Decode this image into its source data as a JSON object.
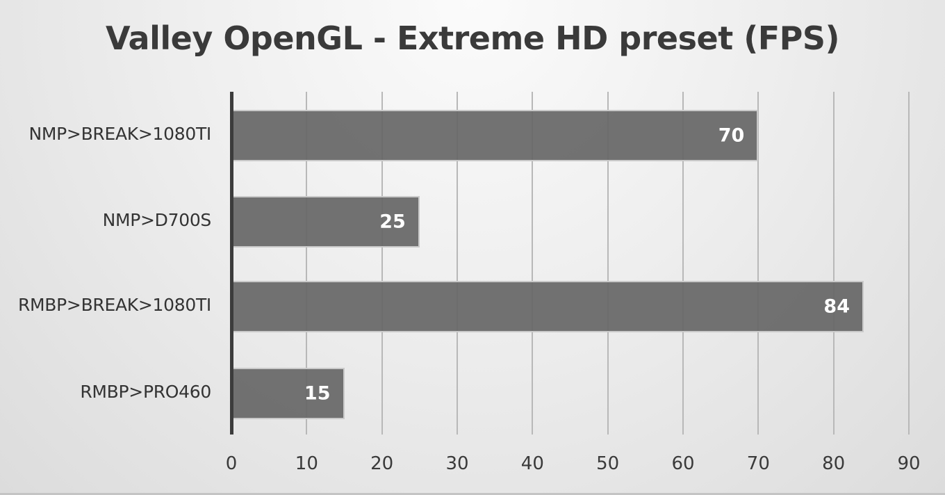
{
  "chart_data": {
    "type": "bar",
    "orientation": "horizontal",
    "title": "Valley OpenGL - Extreme HD preset (FPS)",
    "categories": [
      "NMP>BREAK>1080TI",
      "NMP>D700S",
      "RMBP>BREAK>1080TI",
      "RMBP>PRO460"
    ],
    "values": [
      70,
      25,
      84,
      15
    ],
    "data_labels": [
      "70",
      "25",
      "84",
      "15"
    ],
    "xlabel": "",
    "ylabel": "",
    "xlim": [
      0,
      90
    ],
    "xticks": [
      "0",
      "10",
      "20",
      "30",
      "40",
      "50",
      "60",
      "70",
      "80",
      "90"
    ],
    "grid": true,
    "legend": null,
    "bar_color": "#666666"
  }
}
